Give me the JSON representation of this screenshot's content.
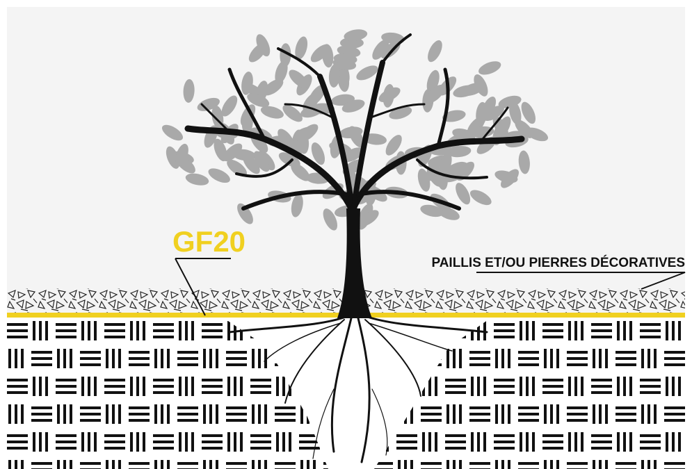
{
  "labels": {
    "product": "GF20",
    "mulch": "PAILLIS ET/OU PIERRES DÉCORATIVES"
  }
}
